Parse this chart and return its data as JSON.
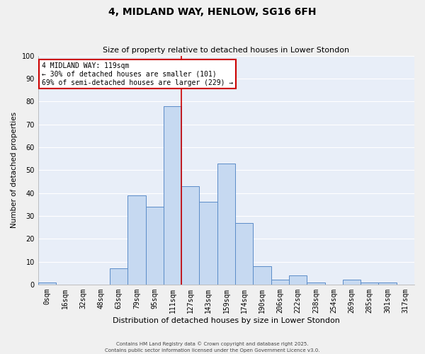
{
  "title": "4, MIDLAND WAY, HENLOW, SG16 6FH",
  "subtitle": "Size of property relative to detached houses in Lower Stondon",
  "xlabel": "Distribution of detached houses by size in Lower Stondon",
  "ylabel": "Number of detached properties",
  "bar_labels": [
    "0sqm",
    "16sqm",
    "32sqm",
    "48sqm",
    "63sqm",
    "79sqm",
    "95sqm",
    "111sqm",
    "127sqm",
    "143sqm",
    "159sqm",
    "174sqm",
    "190sqm",
    "206sqm",
    "222sqm",
    "238sqm",
    "254sqm",
    "269sqm",
    "285sqm",
    "301sqm",
    "317sqm"
  ],
  "bar_values": [
    1,
    0,
    0,
    0,
    7,
    39,
    34,
    78,
    43,
    36,
    53,
    27,
    8,
    2,
    4,
    1,
    0,
    2,
    1,
    1,
    0
  ],
  "bar_color": "#c6d9f1",
  "bar_edge_color": "#5b8cc8",
  "vline_x_index": 7,
  "vline_color": "#cc0000",
  "annotation_title": "4 MIDLAND WAY: 119sqm",
  "annotation_line1": "← 30% of detached houses are smaller (101)",
  "annotation_line2": "69% of semi-detached houses are larger (229) →",
  "annotation_box_edge": "#cc0000",
  "ylim": [
    0,
    100
  ],
  "yticks": [
    0,
    10,
    20,
    30,
    40,
    50,
    60,
    70,
    80,
    90,
    100
  ],
  "footnote1": "Contains HM Land Registry data © Crown copyright and database right 2025.",
  "footnote2": "Contains public sector information licensed under the Open Government Licence v3.0.",
  "bg_color": "#f0f0f0",
  "plot_bg_color": "#e8eef8",
  "grid_color": "#ffffff"
}
